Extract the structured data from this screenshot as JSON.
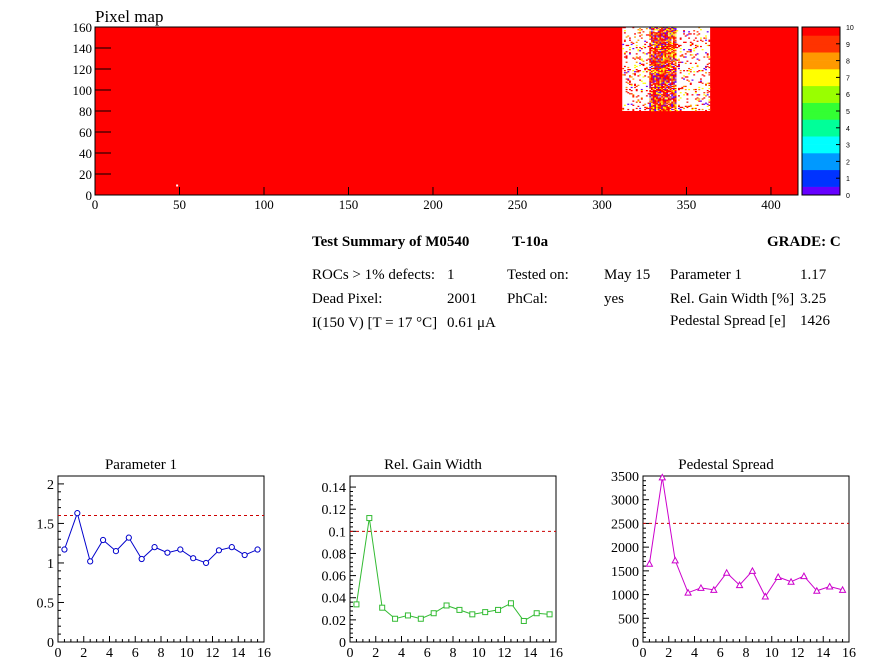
{
  "pixel_map": {
    "title": "Pixel map",
    "bg_color": "#ff0000",
    "hot_region_color": "#ffffff",
    "x_ticks": [
      0,
      50,
      100,
      150,
      200,
      250,
      300,
      350,
      400
    ],
    "y_ticks": [
      0,
      20,
      40,
      60,
      80,
      100,
      120,
      140,
      160
    ],
    "x_range": [
      0,
      416
    ],
    "y_range": [
      0,
      160
    ],
    "palette_labels": [
      "0",
      "1",
      "2",
      "3",
      "4",
      "5",
      "6",
      "7",
      "8",
      "9",
      "10"
    ],
    "palette_colors": [
      "#6600ff",
      "#0033ff",
      "#0099ff",
      "#00ffff",
      "#00ff99",
      "#33ff33",
      "#99ff00",
      "#ffff00",
      "#ff9900",
      "#ff3300",
      "#ff0000"
    ]
  },
  "summary": {
    "heading": "Test Summary of M0540",
    "test": "T-10a",
    "grade": "GRADE:  C",
    "rows": [
      {
        "label": "ROCs > 1% defects:",
        "value": "1"
      },
      {
        "label": "Dead Pixel:",
        "value": "2001"
      },
      {
        "label": "I(150 V) [T = 17 °C]",
        "value": "0.61 μA"
      }
    ],
    "tested_on_label": "Tested on:",
    "tested_on_value": "May 15",
    "phcal_label": "PhCal:",
    "phcal_value": "yes",
    "params": [
      {
        "label": "Parameter 1",
        "value": "1.17"
      },
      {
        "label": "Rel. Gain Width [%]",
        "value": "3.25"
      },
      {
        "label": "Pedestal Spread [e]",
        "value": "1426"
      }
    ]
  },
  "chart_data": [
    {
      "type": "line",
      "title": "Parameter 1",
      "color": "#0000cc",
      "marker": "circle",
      "x": [
        0.5,
        1.5,
        2.5,
        3.5,
        4.5,
        5.5,
        6.5,
        7.5,
        8.5,
        9.5,
        10.5,
        11.5,
        12.5,
        13.5,
        14.5,
        15.5
      ],
      "values": [
        1.17,
        1.63,
        1.02,
        1.29,
        1.15,
        1.32,
        1.05,
        1.2,
        1.13,
        1.17,
        1.06,
        1.0,
        1.16,
        1.2,
        1.1,
        1.17
      ],
      "xlim": [
        0,
        16
      ],
      "ylim": [
        0,
        2.1
      ],
      "x_ticks": [
        0,
        2,
        4,
        6,
        8,
        10,
        12,
        14,
        16
      ],
      "y_ticks": [
        0,
        0.5,
        1,
        1.5,
        2
      ],
      "y_tick_labels": [
        "0",
        "0.5",
        "1",
        "1.5",
        "2"
      ],
      "threshold": 1.6,
      "threshold_color": "#cc0000"
    },
    {
      "type": "line",
      "title": "Rel. Gain Width",
      "color": "#33bb33",
      "marker": "square",
      "x": [
        0.5,
        1.5,
        2.5,
        3.5,
        4.5,
        5.5,
        6.5,
        7.5,
        8.5,
        9.5,
        10.5,
        11.5,
        12.5,
        13.5,
        14.5,
        15.5
      ],
      "values": [
        0.034,
        0.112,
        0.031,
        0.021,
        0.024,
        0.021,
        0.026,
        0.033,
        0.029,
        0.025,
        0.027,
        0.029,
        0.035,
        0.019,
        0.026,
        0.025
      ],
      "xlim": [
        0,
        16
      ],
      "ylim": [
        0,
        0.15
      ],
      "x_ticks": [
        0,
        2,
        4,
        6,
        8,
        10,
        12,
        14,
        16
      ],
      "y_ticks": [
        0,
        0.02,
        0.04,
        0.06,
        0.08,
        0.1,
        0.12,
        0.14
      ],
      "y_tick_labels": [
        "0",
        "0.02",
        "0.04",
        "0.06",
        "0.08",
        "0.1",
        "0.12",
        "0.14"
      ],
      "threshold": 0.1,
      "threshold_color": "#cc0000"
    },
    {
      "type": "line",
      "title": "Pedestal Spread",
      "color": "#cc00cc",
      "marker": "triangle",
      "x": [
        0.5,
        1.5,
        2.5,
        3.5,
        4.5,
        5.5,
        6.5,
        7.5,
        8.5,
        9.5,
        10.5,
        11.5,
        12.5,
        13.5,
        14.5,
        15.5
      ],
      "values": [
        1650,
        3470,
        1720,
        1040,
        1140,
        1100,
        1460,
        1200,
        1500,
        960,
        1370,
        1270,
        1390,
        1080,
        1170,
        1100
      ],
      "xlim": [
        0,
        16
      ],
      "ylim": [
        0,
        3500
      ],
      "x_ticks": [
        0,
        2,
        4,
        6,
        8,
        10,
        12,
        14,
        16
      ],
      "y_ticks": [
        0,
        500,
        1000,
        1500,
        2000,
        2500,
        3000,
        3500
      ],
      "y_tick_labels": [
        "0",
        "500",
        "1000",
        "1500",
        "2000",
        "2500",
        "3000",
        "3500"
      ],
      "threshold": 2500,
      "threshold_color": "#cc0000"
    }
  ]
}
